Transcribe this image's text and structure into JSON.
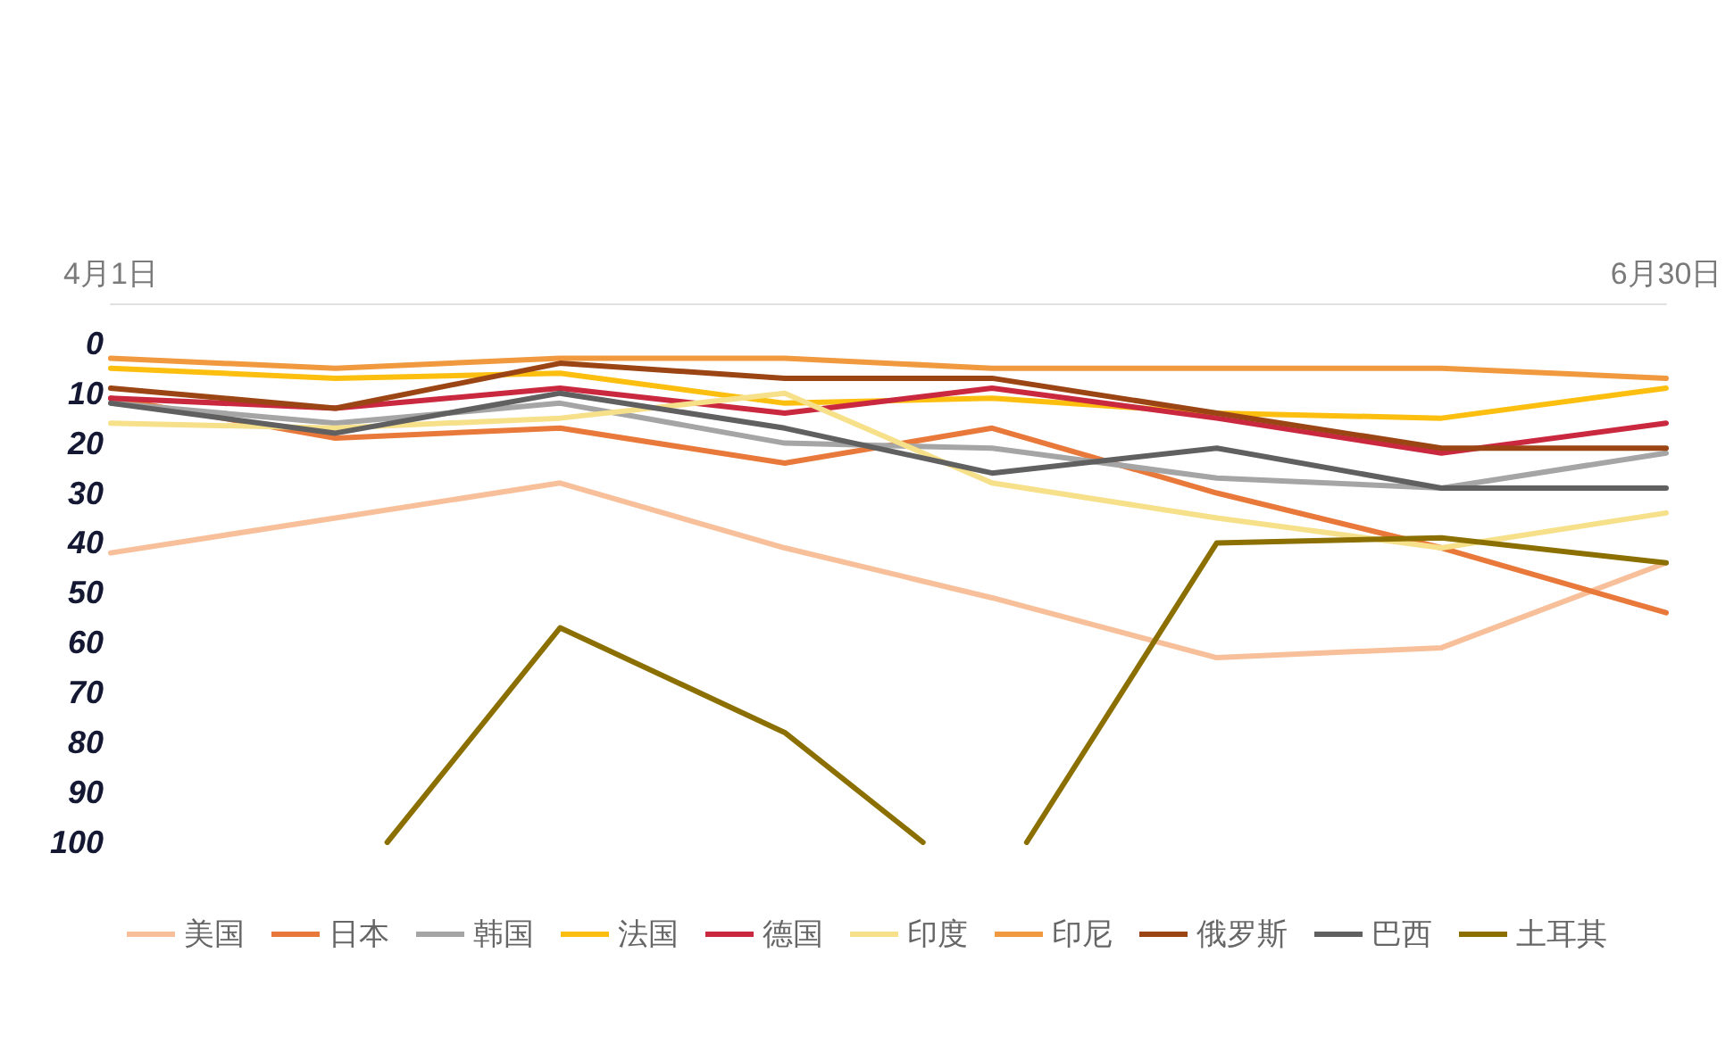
{
  "chart_data": {
    "type": "line",
    "x": [
      "--04-01",
      "--04-14",
      "--04-27",
      "--05-10",
      "--05-22",
      "--06-04",
      "--06-17",
      "--06-30"
    ],
    "series": [
      {
        "name": "美国",
        "color": "#f8c09a",
        "values": [
          42,
          35,
          28,
          41,
          51,
          63,
          61,
          44
        ]
      },
      {
        "name": "日本",
        "color": "#e8793a",
        "values": [
          11,
          19,
          17,
          24,
          17,
          30,
          41,
          54
        ]
      },
      {
        "name": "韩国",
        "color": "#a5a5a5",
        "values": [
          12,
          16,
          12,
          20,
          21,
          27,
          29,
          22
        ]
      },
      {
        "name": "法国",
        "color": "#fcbf10",
        "values": [
          5,
          7,
          6,
          12,
          11,
          14,
          15,
          9
        ]
      },
      {
        "name": "德国",
        "color": "#c9283e",
        "values": [
          11,
          13,
          9,
          14,
          9,
          15,
          22,
          16
        ]
      },
      {
        "name": "印度",
        "color": "#f7e08a",
        "values": [
          16,
          17,
          15,
          10,
          28,
          35,
          41,
          34
        ]
      },
      {
        "name": "印尼",
        "color": "#f0993e",
        "values": [
          3,
          5,
          3,
          3,
          5,
          5,
          5,
          7
        ]
      },
      {
        "name": "俄罗斯",
        "color": "#9b4515",
        "values": [
          9,
          13,
          4,
          7,
          7,
          14,
          21,
          21
        ]
      },
      {
        "name": "巴西",
        "color": "#606060",
        "values": [
          12,
          18,
          10,
          17,
          26,
          21,
          29,
          29
        ]
      },
      {
        "name": "土耳其",
        "color": "#8b6f00",
        "x": [
          "--04-17",
          "--04-27",
          "--05-10",
          "--05-18",
          "--05-21",
          "--05-24",
          "--06-04",
          "--06-17",
          "--06-30"
        ],
        "values": [
          100,
          57,
          78,
          100,
          null,
          100,
          40,
          39,
          44
        ]
      }
    ],
    "xlim": [
      "--04-01",
      "--06-30"
    ],
    "xticks": [
      {
        "value": "--04-01",
        "label": "4月1日"
      },
      {
        "value": "--06-30",
        "label": "6月30日"
      }
    ],
    "ylim": [
      100,
      -8
    ],
    "yticks": [
      0,
      10,
      20,
      30,
      40,
      50,
      60,
      70,
      80,
      90,
      100
    ],
    "grid": false,
    "legend": "bottom",
    "marker": "none",
    "line_style": "solid"
  }
}
